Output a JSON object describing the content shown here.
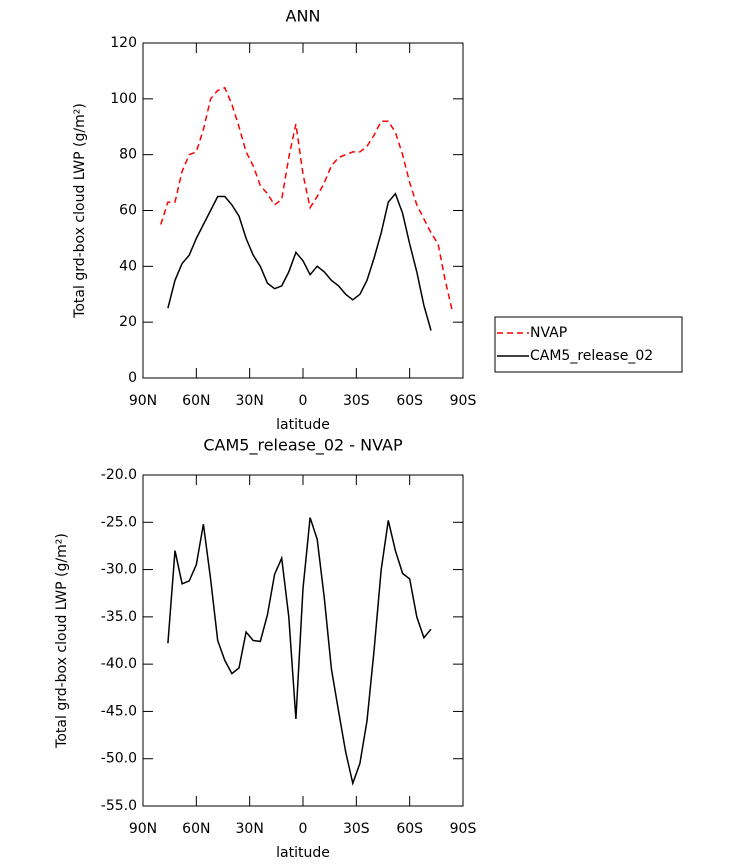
{
  "chart_data": [
    {
      "type": "line",
      "title": "ANN",
      "xlabel": "latitude",
      "ylabel": "Total grd-box cloud LWP (g/m²)",
      "x": [
        80,
        76,
        72,
        68,
        64,
        60,
        56,
        52,
        48,
        44,
        40,
        36,
        32,
        28,
        24,
        20,
        16,
        12,
        8,
        4,
        0,
        -4,
        -8,
        -12,
        -16,
        -20,
        -24,
        -28,
        -32,
        -36,
        -40,
        -44,
        -48,
        -52,
        -56,
        -60,
        -64,
        -68,
        -72,
        -76,
        -80,
        -84
      ],
      "series": [
        {
          "name": "NVAP",
          "color": "#ff0000",
          "style": "dashed",
          "values": [
            55,
            63,
            63,
            74,
            80,
            81,
            89,
            100,
            103,
            104,
            98,
            90,
            81,
            76,
            69,
            66,
            62,
            64,
            79,
            91,
            73,
            61,
            65,
            70,
            76,
            79,
            80,
            81,
            81,
            83,
            87,
            92,
            92,
            88,
            80,
            70,
            62,
            57,
            52,
            48,
            35,
            24
          ]
        },
        {
          "name": "CAM5_release_02",
          "color": "#000000",
          "style": "solid",
          "values": [
            null,
            25,
            35,
            41,
            44,
            50,
            55,
            60,
            65,
            65,
            62,
            58,
            50,
            44,
            40,
            34,
            32,
            33,
            38,
            45,
            42,
            37,
            40,
            38,
            35,
            33,
            30,
            28,
            30,
            35,
            43,
            52,
            63,
            66,
            59,
            48,
            38,
            26,
            17,
            null,
            null,
            null
          ]
        }
      ],
      "xlim": [
        90,
        -90
      ],
      "xticks": [
        {
          "value": 90,
          "label": "90N"
        },
        {
          "value": 60,
          "label": "60N"
        },
        {
          "value": 30,
          "label": "30N"
        },
        0,
        {
          "value": -30,
          "label": "30S"
        },
        {
          "value": -60,
          "label": "60S"
        },
        {
          "value": -90,
          "label": "90S"
        }
      ],
      "ylim": [
        0,
        120
      ],
      "yticks": [
        0,
        20,
        40,
        60,
        80,
        100,
        120
      ],
      "legend": "right"
    },
    {
      "type": "line",
      "title": "CAM5_release_02 - NVAP",
      "xlabel": "latitude",
      "ylabel": "Total grd-box cloud LWP (g/m²)",
      "x": [
        80,
        76,
        72,
        68,
        64,
        60,
        56,
        52,
        48,
        44,
        40,
        36,
        32,
        28,
        24,
        20,
        16,
        12,
        8,
        4,
        0,
        -4,
        -8,
        -12,
        -16,
        -20,
        -24,
        -28,
        -32,
        -36,
        -40,
        -44,
        -48,
        -52,
        -56,
        -60,
        -64,
        -68,
        -72,
        -76,
        -80,
        -84
      ],
      "series": [
        {
          "color": "#000000",
          "style": "solid",
          "values": [
            null,
            -37.8,
            -28,
            -31.5,
            -31.2,
            -29.5,
            -25.2,
            -31,
            -37.5,
            -39.6,
            -41,
            -40.4,
            -36.6,
            -37.5,
            -37.6,
            -34.8,
            -30.5,
            -28.8,
            -35,
            -45.8,
            -32,
            -24.5,
            -26.8,
            -33,
            -40.5,
            -45,
            -49.3,
            -52.6,
            -50.5,
            -46,
            -38.5,
            -30,
            -24.8,
            -28,
            -30.4,
            -31,
            -35,
            -37.2,
            -36.3,
            null,
            null,
            null
          ]
        }
      ],
      "xlim": [
        90,
        -90
      ],
      "xticks": [
        {
          "value": 90,
          "label": "90N"
        },
        {
          "value": 60,
          "label": "60N"
        },
        {
          "value": 30,
          "label": "30N"
        },
        0,
        {
          "value": -30,
          "label": "30S"
        },
        {
          "value": -60,
          "label": "60S"
        },
        {
          "value": -90,
          "label": "90S"
        }
      ],
      "ylim": [
        -55,
        -20
      ],
      "yticks": [
        {
          "value": -55,
          "label": "-55.0"
        },
        {
          "value": -50,
          "label": "-50.0"
        },
        {
          "value": -45,
          "label": "-45.0"
        },
        {
          "value": -40,
          "label": "-40.0"
        },
        {
          "value": -35,
          "label": "-35.0"
        },
        {
          "value": -30,
          "label": "-30.0"
        },
        {
          "value": -25,
          "label": "-25.0"
        },
        {
          "value": -20,
          "label": "-20.0"
        }
      ]
    }
  ]
}
